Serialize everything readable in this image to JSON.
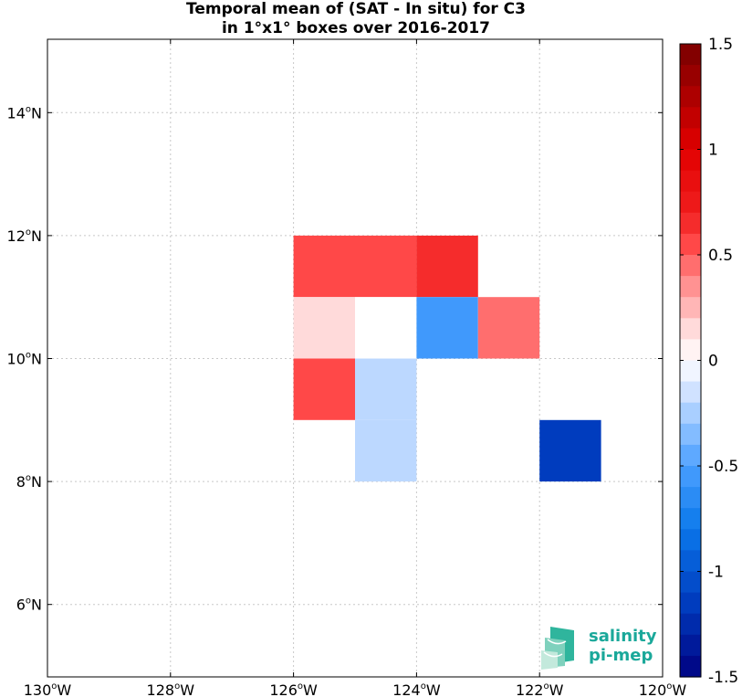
{
  "title": {
    "line1": "Temporal mean of (SAT - In situ) for C3",
    "line2": "in 1°x1° boxes over 2016-2017"
  },
  "map": {
    "lon_range": [
      -130,
      -120
    ],
    "lat_range": [
      5,
      15
    ],
    "grid": true,
    "x_ticks": [
      {
        "value": -130,
        "label": "130",
        "suffix": "W"
      },
      {
        "value": -128,
        "label": "128",
        "suffix": "W"
      },
      {
        "value": -126,
        "label": "126",
        "suffix": "W"
      },
      {
        "value": -124,
        "label": "124",
        "suffix": "W"
      },
      {
        "value": -122,
        "label": "122",
        "suffix": "W"
      },
      {
        "value": -120,
        "label": "120",
        "suffix": "W"
      }
    ],
    "y_ticks": [
      {
        "value": 6,
        "label": "6",
        "suffix": "N"
      },
      {
        "value": 8,
        "label": "8",
        "suffix": "N"
      },
      {
        "value": 10,
        "label": "10",
        "suffix": "N"
      },
      {
        "value": 12,
        "label": "12",
        "suffix": "N"
      },
      {
        "value": 14,
        "label": "14",
        "suffix": "N"
      }
    ],
    "degree_symbol": "o"
  },
  "chart_data": {
    "type": "heatmap",
    "title": "Temporal mean of (SAT - In situ) for C3 in 1°x1° boxes over 2016-2017",
    "cell_size_deg": 1,
    "cells": [
      {
        "lon": -126,
        "lat": 11,
        "value": 0.55
      },
      {
        "lon": -125,
        "lat": 11,
        "value": 0.55
      },
      {
        "lon": -124,
        "lat": 11,
        "value": 0.65
      },
      {
        "lon": -126,
        "lat": 10,
        "value": 0.15
      },
      {
        "lon": -125,
        "lat": 10,
        "value": 0.0
      },
      {
        "lon": -124,
        "lat": 10,
        "value": -0.55
      },
      {
        "lon": -123,
        "lat": 10,
        "value": 0.45
      },
      {
        "lon": -126,
        "lat": 9,
        "value": 0.55
      },
      {
        "lon": -125,
        "lat": 9,
        "value": -0.2
      },
      {
        "lon": -125,
        "lat": 8,
        "value": -0.2
      },
      {
        "lon": -122,
        "lat": 8,
        "value": -1.15
      }
    ],
    "colorbar": {
      "range": [
        -1.5,
        1.5
      ],
      "ticks": [
        "1.5",
        "1",
        "0.5",
        "0",
        "-0.5",
        "-1",
        "-1.5"
      ],
      "tick_values": [
        1.5,
        1,
        0.5,
        0,
        -0.5,
        -1,
        -1.5
      ]
    }
  },
  "logo": {
    "line1": "salinity",
    "line2": "pi-mep"
  },
  "colors": {
    "logo_text": "#1aa89a",
    "logo_mark": "#2fb59d"
  }
}
